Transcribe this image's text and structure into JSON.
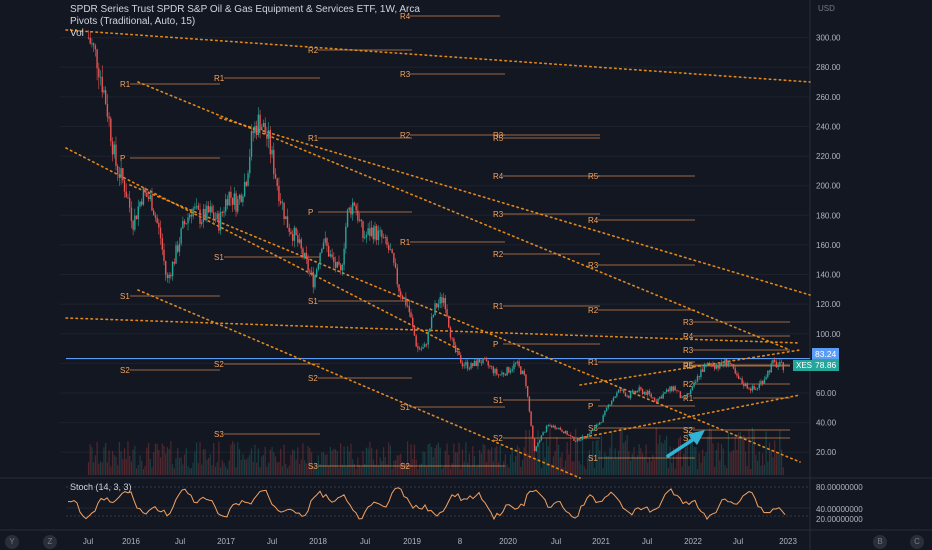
{
  "header": {
    "title": "SPDR Series Trust SPDR S&P Oil & Gas Equipment & Services ETF, 1W, Arca",
    "indicator_pivots": "Pivots (Traditional, Auto, 15)",
    "indicator_vol": "Vol"
  },
  "currency": "USD",
  "stoch_label": "Stoch (14, 3, 3)",
  "price_tags": {
    "level": "83.24",
    "level_color": "#5b9cf6",
    "symbol": "XES",
    "last": "78.86",
    "last_color": "#26a69a"
  },
  "colors": {
    "background": "#131722",
    "up": "#26a69a",
    "down": "#ef5350",
    "pivot": "#f7a35c",
    "trendline": "#f7931a",
    "arrow": "#2fb4d8",
    "stoch": "#f4a261"
  },
  "corner_buttons": [
    "Y",
    "Z",
    "B",
    "C"
  ],
  "chart_data": {
    "type": "line",
    "xlabel": "",
    "ylabel": "",
    "x_ticks": [
      "Jul",
      "2016",
      "Jul",
      "2017",
      "Jul",
      "2018",
      "Jul",
      "2019",
      "8",
      "2020",
      "Jul",
      "2021",
      "Jul",
      "2022",
      "Jul",
      "2023"
    ],
    "y_ticks": [
      "300.00",
      "280.00",
      "260.00",
      "240.00",
      "220.00",
      "200.00",
      "180.00",
      "160.00",
      "140.00",
      "120.00",
      "100.00",
      "80.00",
      "60.00",
      "40.00",
      "20.00"
    ],
    "ylim": [
      8,
      320
    ],
    "series": [
      {
        "x": [
          2015.25,
          2015.35,
          2015.45,
          2015.55,
          2015.65,
          2015.75,
          2015.85,
          2015.95,
          2016.05,
          2016.12,
          2016.2,
          2016.3,
          2016.4,
          2016.5,
          2016.6,
          2016.7,
          2016.8,
          2016.9,
          2017.0,
          2017.07,
          2017.15,
          2017.25,
          2017.35,
          2017.45,
          2017.55,
          2017.65,
          2017.75,
          2017.85,
          2017.95,
          2018.05,
          2018.12,
          2018.2,
          2018.3,
          2018.4,
          2018.5,
          2018.6,
          2018.7,
          2018.8,
          2018.9,
          2018.98,
          2019.1,
          2019.2,
          2019.3,
          2019.4,
          2019.5,
          2019.6,
          2019.7,
          2019.8,
          2019.9,
          2020.0,
          2020.1,
          2020.15,
          2020.2,
          2020.25,
          2020.35,
          2020.45,
          2020.55,
          2020.65,
          2020.75,
          2020.85,
          2020.95,
          2021.05,
          2021.15,
          2021.25,
          2021.35,
          2021.45,
          2021.55,
          2021.65,
          2021.75,
          2021.85,
          2021.95,
          2022.05,
          2022.15,
          2022.25,
          2022.35,
          2022.45,
          2022.55,
          2022.65,
          2022.75,
          2022.85,
          2022.95
        ],
        "values": [
          300,
          285,
          255,
          215,
          200,
          175,
          195,
          190,
          165,
          135,
          150,
          172,
          185,
          178,
          182,
          175,
          195,
          188,
          205,
          235,
          245,
          230,
          200,
          175,
          165,
          150,
          135,
          165,
          150,
          140,
          180,
          190,
          165,
          170,
          165,
          155,
          130,
          118,
          90,
          90,
          118,
          125,
          90,
          80,
          78,
          82,
          78,
          72,
          75,
          80,
          70,
          45,
          20,
          28,
          38,
          37,
          33,
          28,
          30,
          35,
          42,
          55,
          62,
          58,
          62,
          60,
          55,
          60,
          64,
          55,
          62,
          75,
          80,
          78,
          82,
          70,
          65,
          62,
          70,
          80,
          78
        ]
      }
    ]
  },
  "pivot_labels": [
    {
      "t": "R4"
    },
    {
      "t": "R2"
    },
    {
      "t": "R3"
    },
    {
      "t": "R1"
    },
    {
      "t": "R1"
    },
    {
      "t": "R1"
    },
    {
      "t": "R2"
    },
    {
      "t": "R3"
    },
    {
      "t": "R4"
    },
    {
      "t": "R5"
    },
    {
      "t": "R3"
    },
    {
      "t": "R4"
    },
    {
      "t": "R1"
    },
    {
      "t": "R2"
    },
    {
      "t": "R3"
    },
    {
      "t": "R2"
    },
    {
      "t": "R1"
    },
    {
      "t": "R3"
    },
    {
      "t": "R4"
    },
    {
      "t": "R3"
    },
    {
      "t": "R1"
    },
    {
      "t": "R5"
    },
    {
      "t": "R2"
    },
    {
      "t": "R1"
    },
    {
      "t": "P"
    },
    {
      "t": "P"
    },
    {
      "t": "P"
    },
    {
      "t": "P"
    },
    {
      "t": "S1"
    },
    {
      "t": "S1"
    },
    {
      "t": "S1"
    },
    {
      "t": "S2"
    },
    {
      "t": "S2"
    },
    {
      "t": "S2"
    },
    {
      "t": "S1"
    },
    {
      "t": "S1"
    },
    {
      "t": "S3"
    },
    {
      "t": "S2"
    },
    {
      "t": "S3"
    },
    {
      "t": "S2"
    },
    {
      "t": "S3"
    },
    {
      "t": "S1"
    },
    {
      "t": "S2"
    },
    {
      "t": "S3"
    },
    {
      "t": "R5"
    },
    {
      "t": "R5"
    }
  ]
}
